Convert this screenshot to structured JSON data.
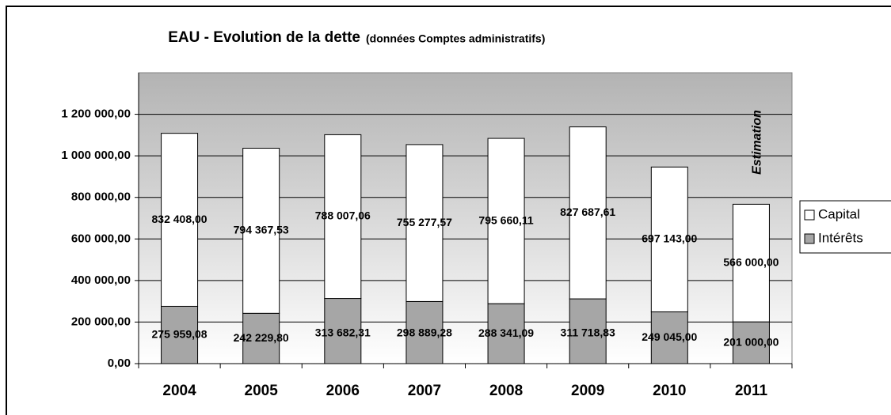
{
  "chart_data": {
    "type": "stacked_bar",
    "title": "EAU - Evolution de la dette",
    "subtitle": "(données Comptes administratifs)",
    "annotation": "Estimation",
    "categories": [
      "2004",
      "2005",
      "2006",
      "2007",
      "2008",
      "2009",
      "2010",
      "2011"
    ],
    "series": [
      {
        "name": "Capital",
        "color": "#ffffff",
        "values": [
          832408.0,
          794367.53,
          788007.06,
          755277.57,
          795660.11,
          827687.61,
          697143.0,
          566000.0
        ],
        "value_labels": [
          "832 408,00",
          "794 367,53",
          "788 007,06",
          "755 277,57",
          "795 660,11",
          "827 687,61",
          "697 143,00",
          "566 000,00"
        ]
      },
      {
        "name": "Intérêts",
        "color": "#a6a6a6",
        "values": [
          275959.08,
          242229.8,
          313682.31,
          298889.28,
          288341.09,
          311718.83,
          249045.0,
          201000.0
        ],
        "value_labels": [
          "275 959,08",
          "242 229,80",
          "313 682,31",
          "298 889,28",
          "288 341,09",
          "311 718,83",
          "249 045,00",
          "201 000,00"
        ]
      }
    ],
    "ylim": [
      0,
      1400000
    ],
    "yticks": [
      {
        "value": 0,
        "label": "0,00"
      },
      {
        "value": 200000,
        "label": "200 000,00"
      },
      {
        "value": 400000,
        "label": "400 000,00"
      },
      {
        "value": 600000,
        "label": "600 000,00"
      },
      {
        "value": 800000,
        "label": "800 000,00"
      },
      {
        "value": 1000000,
        "label": "1 000 000,00"
      },
      {
        "value": 1200000,
        "label": "1 200 000,00"
      }
    ],
    "grid": true,
    "legend": "right"
  }
}
